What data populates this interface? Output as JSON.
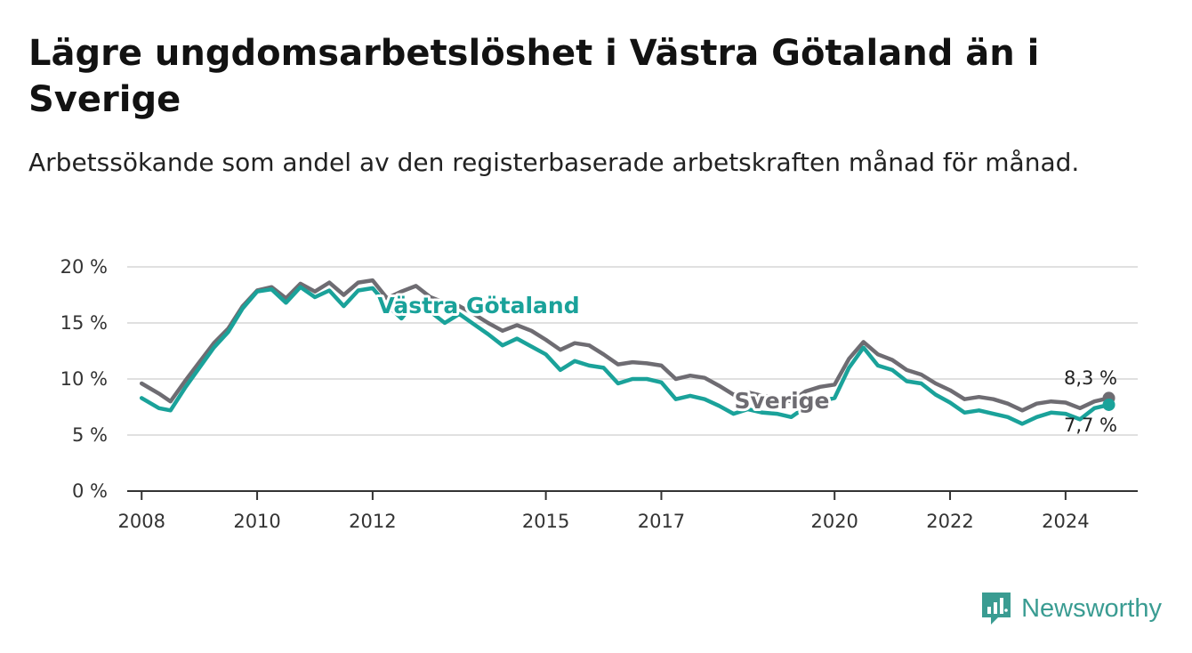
{
  "header": {
    "title": "Lägre ungdomsarbetslöshet i Västra Götaland än i Sverige",
    "subtitle": "Arbetssökande som andel av den registerbaserade arbetskraften månad för månad."
  },
  "brand": {
    "name": "Newsworthy",
    "icon": "newsworthy-logo-icon",
    "color": "#3a9c92"
  },
  "chart_data": {
    "type": "line",
    "ylim": [
      0,
      20
    ],
    "yticks": [
      0,
      5,
      10,
      15,
      20
    ],
    "ytick_labels": [
      "0 %",
      "5 %",
      "10 %",
      "15 %",
      "20 %"
    ],
    "xticks": [
      2008,
      2010,
      2012,
      2015,
      2017,
      2020,
      2022,
      2024
    ],
    "xtick_labels": [
      "2008",
      "2010",
      "2012",
      "2015",
      "2017",
      "2020",
      "2022",
      "2024"
    ],
    "grid": true,
    "series": [
      {
        "name": "Sverige",
        "color": "#6e6c72",
        "end_label": "8,3 %",
        "points": [
          [
            2008.0,
            9.6
          ],
          [
            2008.3,
            8.7
          ],
          [
            2008.5,
            8.0
          ],
          [
            2008.75,
            9.8
          ],
          [
            2009.0,
            11.5
          ],
          [
            2009.25,
            13.2
          ],
          [
            2009.5,
            14.5
          ],
          [
            2009.75,
            16.5
          ],
          [
            2010.0,
            17.9
          ],
          [
            2010.25,
            18.2
          ],
          [
            2010.5,
            17.2
          ],
          [
            2010.75,
            18.5
          ],
          [
            2011.0,
            17.8
          ],
          [
            2011.25,
            18.6
          ],
          [
            2011.5,
            17.5
          ],
          [
            2011.75,
            18.6
          ],
          [
            2012.0,
            18.8
          ],
          [
            2012.25,
            17.2
          ],
          [
            2012.5,
            17.8
          ],
          [
            2012.75,
            18.3
          ],
          [
            2013.0,
            17.3
          ],
          [
            2013.25,
            16.8
          ],
          [
            2013.5,
            16.5
          ],
          [
            2013.75,
            15.8
          ],
          [
            2014.0,
            15.0
          ],
          [
            2014.25,
            14.3
          ],
          [
            2014.5,
            14.8
          ],
          [
            2014.75,
            14.3
          ],
          [
            2015.0,
            13.5
          ],
          [
            2015.25,
            12.6
          ],
          [
            2015.5,
            13.2
          ],
          [
            2015.75,
            13.0
          ],
          [
            2016.0,
            12.2
          ],
          [
            2016.25,
            11.3
          ],
          [
            2016.5,
            11.5
          ],
          [
            2016.75,
            11.4
          ],
          [
            2017.0,
            11.2
          ],
          [
            2017.25,
            10.0
          ],
          [
            2017.5,
            10.3
          ],
          [
            2017.75,
            10.1
          ],
          [
            2018.0,
            9.4
          ],
          [
            2018.25,
            8.6
          ],
          [
            2018.5,
            8.8
          ],
          [
            2018.75,
            8.5
          ],
          [
            2019.0,
            8.3
          ],
          [
            2019.25,
            8.0
          ],
          [
            2019.5,
            8.9
          ],
          [
            2019.75,
            9.3
          ],
          [
            2020.0,
            9.5
          ],
          [
            2020.25,
            11.8
          ],
          [
            2020.5,
            13.3
          ],
          [
            2020.75,
            12.2
          ],
          [
            2021.0,
            11.7
          ],
          [
            2021.25,
            10.8
          ],
          [
            2021.5,
            10.4
          ],
          [
            2021.75,
            9.6
          ],
          [
            2022.0,
            9.0
          ],
          [
            2022.25,
            8.2
          ],
          [
            2022.5,
            8.4
          ],
          [
            2022.75,
            8.2
          ],
          [
            2023.0,
            7.8
          ],
          [
            2023.25,
            7.2
          ],
          [
            2023.5,
            7.8
          ],
          [
            2023.75,
            8.0
          ],
          [
            2024.0,
            7.9
          ],
          [
            2024.25,
            7.4
          ],
          [
            2024.5,
            8.0
          ],
          [
            2024.75,
            8.3
          ]
        ]
      },
      {
        "name": "Västra Götaland",
        "color": "#1aa29a",
        "end_label": "7,7 %",
        "points": [
          [
            2008.0,
            8.3
          ],
          [
            2008.3,
            7.4
          ],
          [
            2008.5,
            7.2
          ],
          [
            2008.75,
            9.2
          ],
          [
            2009.0,
            11.0
          ],
          [
            2009.25,
            12.8
          ],
          [
            2009.5,
            14.2
          ],
          [
            2009.75,
            16.3
          ],
          [
            2010.0,
            17.8
          ],
          [
            2010.25,
            18.0
          ],
          [
            2010.5,
            16.8
          ],
          [
            2010.75,
            18.2
          ],
          [
            2011.0,
            17.3
          ],
          [
            2011.25,
            17.9
          ],
          [
            2011.5,
            16.5
          ],
          [
            2011.75,
            17.9
          ],
          [
            2012.0,
            18.1
          ],
          [
            2012.25,
            16.6
          ],
          [
            2012.5,
            15.4
          ],
          [
            2012.75,
            17.0
          ],
          [
            2013.0,
            16.0
          ],
          [
            2013.25,
            15.0
          ],
          [
            2013.5,
            15.8
          ],
          [
            2013.75,
            14.9
          ],
          [
            2014.0,
            14.0
          ],
          [
            2014.25,
            13.0
          ],
          [
            2014.5,
            13.6
          ],
          [
            2014.75,
            12.9
          ],
          [
            2015.0,
            12.2
          ],
          [
            2015.25,
            10.8
          ],
          [
            2015.5,
            11.6
          ],
          [
            2015.75,
            11.2
          ],
          [
            2016.0,
            11.0
          ],
          [
            2016.25,
            9.6
          ],
          [
            2016.5,
            10.0
          ],
          [
            2016.75,
            10.0
          ],
          [
            2017.0,
            9.7
          ],
          [
            2017.25,
            8.2
          ],
          [
            2017.5,
            8.5
          ],
          [
            2017.75,
            8.2
          ],
          [
            2018.0,
            7.6
          ],
          [
            2018.25,
            6.9
          ],
          [
            2018.5,
            7.3
          ],
          [
            2018.75,
            7.0
          ],
          [
            2019.0,
            6.9
          ],
          [
            2019.25,
            6.6
          ],
          [
            2019.5,
            7.5
          ],
          [
            2019.75,
            8.0
          ],
          [
            2020.0,
            8.3
          ],
          [
            2020.25,
            11.0
          ],
          [
            2020.5,
            12.8
          ],
          [
            2020.75,
            11.2
          ],
          [
            2021.0,
            10.8
          ],
          [
            2021.25,
            9.8
          ],
          [
            2021.5,
            9.6
          ],
          [
            2021.75,
            8.6
          ],
          [
            2022.0,
            7.9
          ],
          [
            2022.25,
            7.0
          ],
          [
            2022.5,
            7.2
          ],
          [
            2022.75,
            6.9
          ],
          [
            2023.0,
            6.6
          ],
          [
            2023.25,
            6.0
          ],
          [
            2023.5,
            6.6
          ],
          [
            2023.75,
            7.0
          ],
          [
            2024.0,
            6.9
          ],
          [
            2024.25,
            6.4
          ],
          [
            2024.5,
            7.4
          ],
          [
            2024.75,
            7.7
          ]
        ]
      }
    ]
  }
}
